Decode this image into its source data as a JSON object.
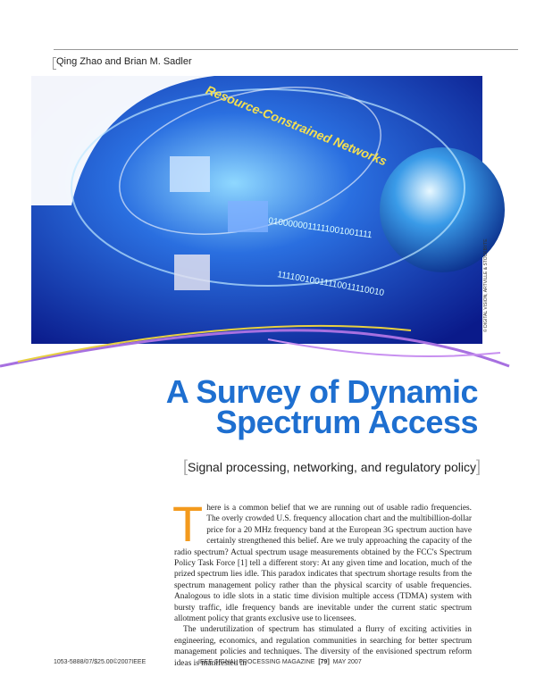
{
  "header": {
    "authors": "Qing Zhao and Brian M. Sadler"
  },
  "art": {
    "banner": "Resource-Constrained Networks",
    "binary": [
      "0100000011111001001111",
      "11110010011110011110010"
    ],
    "credit": "© DIGITAL VISION, ARTVILLE & STOCKBYTE"
  },
  "article": {
    "title_lines": [
      "A Survey of Dynamic",
      "Spectrum Access"
    ],
    "subtitle": "Signal processing, networking, and regulatory policy",
    "drop_cap": "T",
    "paragraphs": [
      "here is a common belief that we are running out of usable radio frequencies. The overly crowded U.S. frequency allocation chart and the multibillion-dollar price for a 20 MHz frequency band at the European 3G spectrum auction have certainly strengthened this belief. Are we truly approaching the capacity of the radio spectrum? Actual spectrum usage measurements obtained by the FCC's Spectrum Policy Task Force [1] tell a different story: At any given time and location, much of the prized spectrum lies idle. This paradox indicates that spectrum shortage results from the spectrum management policy rather than the physical scarcity of usable frequencies. Analogous to idle slots in a static time division multiple access (TDMA) system with bursty traffic, idle frequency bands are inevitable under the current static spectrum allotment policy that grants exclusive use to licensees.",
      "The underutilization of spectrum has stimulated a flurry of exciting activities in engineering, economics, and regulation communities in searching for better spectrum management policies and techniques. The diversity of the envisioned spectrum reform ideas is manifested in"
    ]
  },
  "footer": {
    "code": "1053-5888/07/$25.00©2007IEEE",
    "magazine": "IEEE SIGNAL PROCESSING MAGAZINE",
    "page": "[79]",
    "date": "MAY 2007"
  }
}
